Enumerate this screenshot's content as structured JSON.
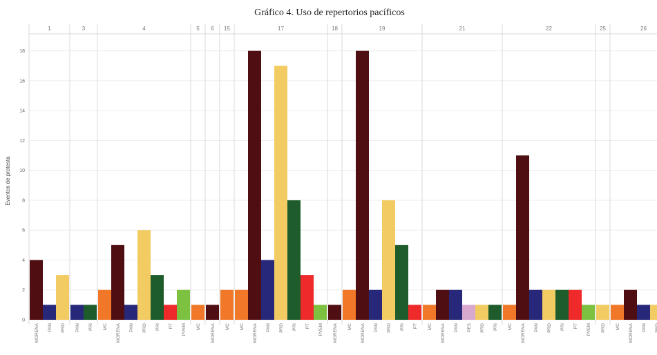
{
  "chart_data": {
    "type": "bar",
    "title": "Gráfico 4. Uso de repertorios pacíficos",
    "ylabel": "Eventos de protesta",
    "ylim": [
      0,
      19
    ],
    "yticks": [
      0,
      2,
      4,
      6,
      8,
      10,
      12,
      14,
      16,
      18
    ],
    "grid": "horizontal",
    "party_colors": {
      "MC": "#f07828",
      "MORENA": "#4f0f12",
      "PAN": "#28287a",
      "PRD": "#f2cb63",
      "PRI": "#1f5c2c",
      "PT": "#ee2a2a",
      "PVEM": "#7dc141",
      "PES": "#d9a8cf"
    },
    "groups": [
      {
        "label": "1",
        "bars": [
          {
            "party": "MORENA",
            "value": 4
          },
          {
            "party": "PAN",
            "value": 1
          },
          {
            "party": "PRD",
            "value": 3
          }
        ]
      },
      {
        "label": "3",
        "bars": [
          {
            "party": "PAN",
            "value": 1
          },
          {
            "party": "PRI",
            "value": 1
          }
        ]
      },
      {
        "label": "4",
        "bars": [
          {
            "party": "MC",
            "value": 2
          },
          {
            "party": "MORENA",
            "value": 5
          },
          {
            "party": "PAN",
            "value": 1
          },
          {
            "party": "PRD",
            "value": 6
          },
          {
            "party": "PRI",
            "value": 3
          },
          {
            "party": "PT",
            "value": 1
          },
          {
            "party": "PVEM",
            "value": 2
          }
        ]
      },
      {
        "label": "5",
        "bars": [
          {
            "party": "MC",
            "value": 1
          }
        ]
      },
      {
        "label": "6",
        "bars": [
          {
            "party": "MORENA",
            "value": 1
          }
        ]
      },
      {
        "label": "15",
        "bars": [
          {
            "party": "MC",
            "value": 2
          }
        ]
      },
      {
        "label": "17",
        "bars": [
          {
            "party": "MC",
            "value": 2
          },
          {
            "party": "MORENA",
            "value": 18
          },
          {
            "party": "PAN",
            "value": 4
          },
          {
            "party": "PRD",
            "value": 17
          },
          {
            "party": "PRI",
            "value": 8
          },
          {
            "party": "PT",
            "value": 3
          },
          {
            "party": "PVEM",
            "value": 1
          }
        ]
      },
      {
        "label": "18",
        "bars": [
          {
            "party": "MORENA",
            "value": 1
          }
        ]
      },
      {
        "label": "19",
        "bars": [
          {
            "party": "MC",
            "value": 2
          },
          {
            "party": "MORENA",
            "value": 18
          },
          {
            "party": "PAN",
            "value": 2
          },
          {
            "party": "PRD",
            "value": 8
          },
          {
            "party": "PRI",
            "value": 5
          },
          {
            "party": "PT",
            "value": 1
          }
        ]
      },
      {
        "label": "21",
        "bars": [
          {
            "party": "MC",
            "value": 1
          },
          {
            "party": "MORENA",
            "value": 2
          },
          {
            "party": "PAN",
            "value": 2
          },
          {
            "party": "PES",
            "value": 1
          },
          {
            "party": "PRD",
            "value": 1
          },
          {
            "party": "PRI",
            "value": 1
          }
        ]
      },
      {
        "label": "22",
        "bars": [
          {
            "party": "MC",
            "value": 1
          },
          {
            "party": "MORENA",
            "value": 11
          },
          {
            "party": "PAN",
            "value": 2
          },
          {
            "party": "PRD",
            "value": 2
          },
          {
            "party": "PRI",
            "value": 2
          },
          {
            "party": "PT",
            "value": 2
          },
          {
            "party": "PVEM",
            "value": 1
          }
        ]
      },
      {
        "label": "25",
        "bars": [
          {
            "party": "PRD",
            "value": 1
          }
        ]
      },
      {
        "label": "26",
        "bars": [
          {
            "party": "MC",
            "value": 1
          },
          {
            "party": "MORENA",
            "value": 2
          },
          {
            "party": "PAN",
            "value": 1
          },
          {
            "party": "PRD",
            "value": 1
          },
          {
            "party": "PRI",
            "value": 2
          }
        ]
      }
    ]
  }
}
